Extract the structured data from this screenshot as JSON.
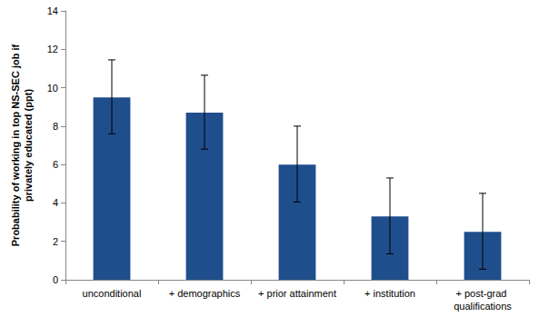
{
  "chart_data": {
    "type": "bar",
    "y_label": "Probability of working in top NS-SEC job if privately educated (ppt)",
    "categories": [
      "unconditional",
      "+ demographics",
      "+ prior attainment",
      "+ institution",
      "+ post-grad qualifications"
    ],
    "values": [
      9.5,
      8.7,
      6.0,
      3.3,
      2.5
    ],
    "error_low": [
      7.6,
      6.8,
      4.05,
      1.35,
      0.55
    ],
    "error_high": [
      11.45,
      10.65,
      8.0,
      5.3,
      4.5
    ],
    "color": "#1f4e8c",
    "ylim": [
      0,
      14
    ],
    "yticks": [
      0,
      2,
      4,
      6,
      8,
      10,
      12,
      14
    ],
    "grid": false
  }
}
